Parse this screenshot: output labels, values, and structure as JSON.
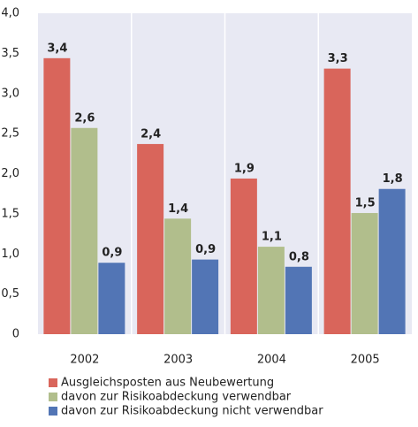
{
  "chart_data": {
    "type": "bar",
    "categories": [
      "2002",
      "2003",
      "2004",
      "2005"
    ],
    "series": [
      {
        "name": "Ausgleichsposten aus Neubewertung",
        "color": "#d9655b",
        "values": [
          3.44,
          2.37,
          1.94,
          3.31
        ],
        "value_labels": [
          "3,4",
          "2,4",
          "1,9",
          "3,3"
        ]
      },
      {
        "name": "davon zur Risikoabdeckung verwendbar",
        "color": "#b1be8c",
        "values": [
          2.57,
          1.44,
          1.09,
          1.51
        ],
        "value_labels": [
          "2,6",
          "1,4",
          "1,1",
          "1,5"
        ]
      },
      {
        "name": "davon zur Risikoabdeckung nicht verwendbar",
        "color": "#5275b5",
        "values": [
          0.89,
          0.93,
          0.84,
          1.81
        ],
        "value_labels": [
          "0,9",
          "0,9",
          "0,8",
          "1,8"
        ]
      }
    ],
    "ylim": [
      0,
      4
    ],
    "yticks": [
      0,
      {
        "value": 0.5,
        "label": "0,5"
      },
      {
        "value": 1,
        "label": "1,0"
      },
      {
        "value": 1.5,
        "label": "1,5"
      },
      {
        "value": 2,
        "label": "2,0"
      },
      {
        "value": 2.5,
        "label": "2,5"
      },
      {
        "value": 3,
        "label": "3,0"
      },
      {
        "value": 3.5,
        "label": "3,5"
      },
      {
        "value": 4,
        "label": "4,0"
      }
    ]
  }
}
